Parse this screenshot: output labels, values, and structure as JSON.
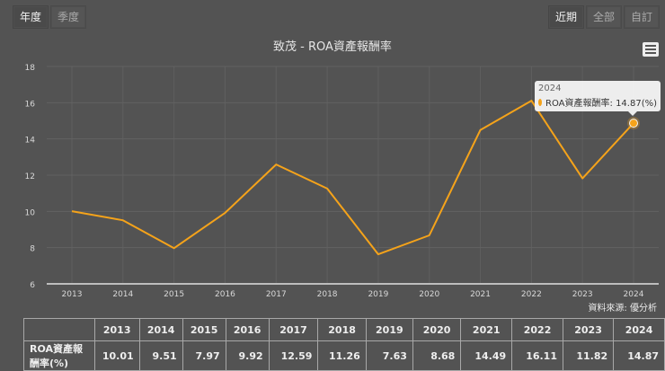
{
  "period_tabs": [
    {
      "label": "年度",
      "active": true
    },
    {
      "label": "季度",
      "active": false
    }
  ],
  "range_tabs": [
    {
      "label": "近期",
      "active": true
    },
    {
      "label": "全部",
      "active": false
    },
    {
      "label": "自訂",
      "active": false
    }
  ],
  "menu_icon": "hamburger-menu-icon",
  "source_text": "資料來源: 優分析",
  "tooltip": {
    "year": "2024",
    "series": "ROA資產報酬率",
    "value_text": "ROA資產報酬率: 14.87(%)"
  },
  "colors": {
    "background": "#535353",
    "line": "#f5a31a",
    "grid": "#666666"
  },
  "table": {
    "header_blank": "",
    "row_label": "ROA資產報酬率(%)",
    "years": [
      "2013",
      "2014",
      "2015",
      "2016",
      "2017",
      "2018",
      "2019",
      "2020",
      "2021",
      "2022",
      "2023",
      "2024"
    ],
    "values": [
      "10.01",
      "9.51",
      "7.97",
      "9.92",
      "12.59",
      "11.26",
      "7.63",
      "8.68",
      "14.49",
      "16.11",
      "11.82",
      "14.87"
    ]
  },
  "chart_data": {
    "type": "line",
    "title": "致茂 - ROA資產報酬率",
    "xlabel": "",
    "ylabel": "",
    "categories": [
      "2013",
      "2014",
      "2015",
      "2016",
      "2017",
      "2018",
      "2019",
      "2020",
      "2021",
      "2022",
      "2023",
      "2024"
    ],
    "series": [
      {
        "name": "ROA資產報酬率",
        "unit": "%",
        "values": [
          10.01,
          9.51,
          7.97,
          9.92,
          12.59,
          11.26,
          7.63,
          8.68,
          14.49,
          16.11,
          11.82,
          14.87
        ]
      }
    ],
    "ylim": [
      6,
      18
    ],
    "yticks": [
      6,
      8,
      10,
      12,
      14,
      16,
      18
    ],
    "grid": true,
    "legend": "none",
    "highlighted_point": {
      "x": "2024",
      "y": 14.87
    }
  }
}
